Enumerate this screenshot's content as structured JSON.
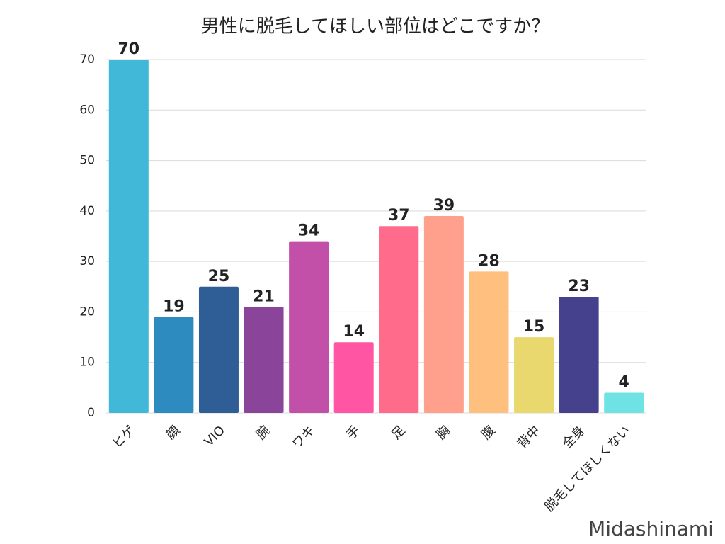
{
  "chart_data": {
    "type": "bar",
    "title": "男性に脱毛してほしい部位はどこですか？",
    "categories": [
      "ヒゲ",
      "顔",
      "VIO",
      "腕",
      "ワキ",
      "手",
      "足",
      "胸",
      "腹",
      "背中",
      "全身",
      "脱毛してほしくない"
    ],
    "values": [
      70,
      19,
      25,
      21,
      34,
      14,
      37,
      39,
      28,
      15,
      23,
      4
    ],
    "colors": [
      "#41b8d8",
      "#2e8bbf",
      "#2f5e96",
      "#8a4499",
      "#c24fa8",
      "#ff55a3",
      "#ff6b8a",
      "#ffa08d",
      "#ffbf7f",
      "#e8d86e",
      "#45418c",
      "#6fe3e3"
    ],
    "ylim": [
      0,
      70
    ],
    "yticks": [
      0,
      10,
      20,
      30,
      40,
      50,
      60,
      70
    ],
    "grid": true,
    "watermark": "Midashinami"
  }
}
